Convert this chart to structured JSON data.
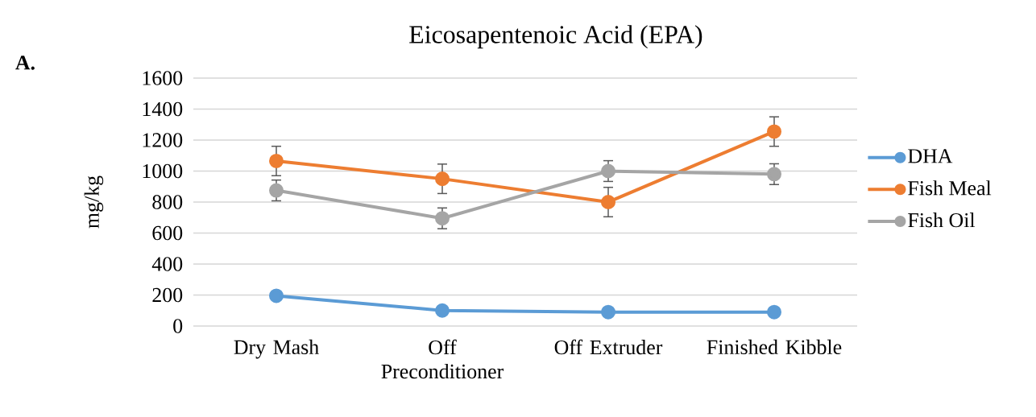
{
  "chart_data": {
    "type": "line",
    "title": "Eicosapentenoic Acid (EPA)",
    "ylabel": "mg/kg",
    "categories": [
      "Dry Mash",
      "Off Preconditioner",
      "Off Extruder",
      "Finished Kibble"
    ],
    "series": [
      {
        "name": "DHA",
        "color": "#5b9bd5",
        "values": [
          195,
          100,
          90,
          90
        ]
      },
      {
        "name": "Fish Meal",
        "color": "#ed7d31",
        "values": [
          1065,
          950,
          800,
          1255
        ],
        "errors": [
          95,
          95,
          95,
          95
        ]
      },
      {
        "name": "Fish Oil",
        "color": "#a5a5a5",
        "values": [
          875,
          695,
          1000,
          980
        ],
        "errors": [
          67,
          67,
          67,
          67
        ]
      }
    ],
    "ylim": [
      0,
      1600
    ],
    "yticks": [
      0,
      200,
      400,
      600,
      800,
      1000,
      1200,
      1400,
      1600
    ],
    "grid": "y",
    "legend": "right",
    "marker": "circle",
    "line_style": "solid",
    "annotations": [
      "A."
    ]
  }
}
